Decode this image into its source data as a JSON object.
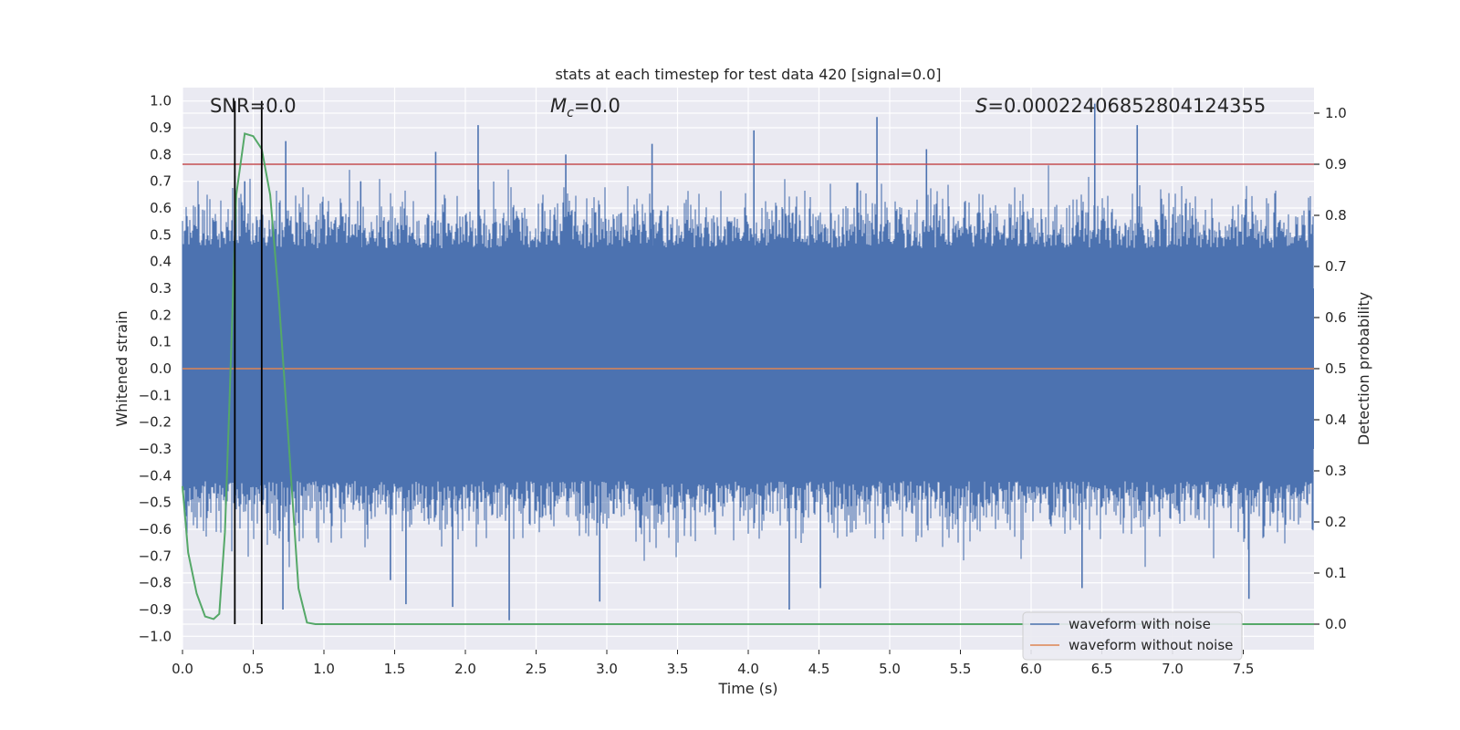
{
  "chart_data": {
    "type": "line",
    "title": "stats at each timestep for test data 420 [signal=0.0]",
    "xlabel": "Time (s)",
    "ylabel": "Whitened strain",
    "y2label": "Detection probability",
    "xlim": [
      0.0,
      8.0
    ],
    "ylim": [
      -1.05,
      1.05
    ],
    "y2lim": [
      -0.05,
      1.05
    ],
    "grid": true,
    "x_ticks": [
      "0.0",
      "0.5",
      "1.0",
      "1.5",
      "2.0",
      "2.5",
      "3.0",
      "3.5",
      "4.0",
      "4.5",
      "5.0",
      "5.5",
      "6.0",
      "6.5",
      "7.0",
      "7.5"
    ],
    "y_ticks": [
      "1.0",
      "0.9",
      "0.8",
      "0.7",
      "0.6",
      "0.5",
      "0.4",
      "0.3",
      "0.2",
      "0.1",
      "0.0",
      "-0.1",
      "-0.2",
      "-0.3",
      "-0.4",
      "-0.5",
      "-0.6",
      "-0.7",
      "-0.8",
      "-0.9",
      "-1.0"
    ],
    "y2_ticks": [
      "1.0",
      "0.9",
      "0.8",
      "0.7",
      "0.6",
      "0.5",
      "0.4",
      "0.3",
      "0.2",
      "0.1",
      "0.0"
    ],
    "annotations": {
      "snr": "SNR=0.0",
      "mc_symbol": "M",
      "mc_sub": "c",
      "mc_value": "=0.0",
      "s_symbol": "S",
      "s_value": "=0.00022406852804124355"
    },
    "vertical_lines_x": [
      0.37,
      0.56
    ],
    "threshold_y2": 0.9,
    "legend": {
      "position": "bottom-right",
      "entries": [
        "waveform with noise",
        "waveform without noise"
      ]
    },
    "series": [
      {
        "name": "waveform with noise",
        "color": "#4c72b0",
        "description": "dense noise, roughly within -0.65..0.65 with spikes up to 1.0 and down to -0.95",
        "spikes": [
          {
            "x": 0.37,
            "y": 0.72
          },
          {
            "x": 0.44,
            "y": 0.7
          },
          {
            "x": 0.56,
            "y": 0.77
          },
          {
            "x": 0.73,
            "y": 0.85
          },
          {
            "x": 1.26,
            "y": 0.7
          },
          {
            "x": 1.79,
            "y": 0.81
          },
          {
            "x": 2.09,
            "y": 0.91
          },
          {
            "x": 2.71,
            "y": 0.8
          },
          {
            "x": 3.32,
            "y": 0.84
          },
          {
            "x": 4.04,
            "y": 0.89
          },
          {
            "x": 4.91,
            "y": 0.94
          },
          {
            "x": 5.26,
            "y": 0.82
          },
          {
            "x": 6.45,
            "y": 0.99
          },
          {
            "x": 6.75,
            "y": 0.91
          },
          {
            "x": 0.71,
            "y": -0.9
          },
          {
            "x": 1.47,
            "y": -0.79
          },
          {
            "x": 1.58,
            "y": -0.88
          },
          {
            "x": 1.91,
            "y": -0.89
          },
          {
            "x": 2.31,
            "y": -0.94
          },
          {
            "x": 2.95,
            "y": -0.87
          },
          {
            "x": 4.29,
            "y": -0.9
          },
          {
            "x": 4.51,
            "y": -0.82
          },
          {
            "x": 6.36,
            "y": -0.82
          },
          {
            "x": 7.54,
            "y": -0.86
          }
        ]
      },
      {
        "name": "waveform without noise",
        "color": "#dd8452",
        "x": [
          0.0,
          8.0
        ],
        "y": [
          0.0,
          0.0
        ]
      },
      {
        "name": "detection probability",
        "color": "#55a868",
        "axis": "right",
        "x": [
          0.0,
          0.04,
          0.1,
          0.16,
          0.22,
          0.26,
          0.3,
          0.33,
          0.36,
          0.38,
          0.4,
          0.44,
          0.5,
          0.56,
          0.62,
          0.68,
          0.74,
          0.82,
          0.88,
          0.94,
          1.0,
          2.0,
          4.0,
          6.0,
          8.0
        ],
        "y": [
          0.27,
          0.14,
          0.06,
          0.015,
          0.01,
          0.02,
          0.18,
          0.42,
          0.67,
          0.84,
          0.88,
          0.96,
          0.955,
          0.93,
          0.84,
          0.64,
          0.4,
          0.07,
          0.003,
          0.0,
          0.0,
          0.0,
          0.0,
          0.0,
          0.0
        ]
      }
    ]
  },
  "colors": {
    "background": "#eaeaf2",
    "grid": "#ffffff",
    "noise": "#4c72b0",
    "clean": "#dd8452",
    "prob": "#55a868",
    "threshold": "#c44e52",
    "vline": "#000000"
  }
}
